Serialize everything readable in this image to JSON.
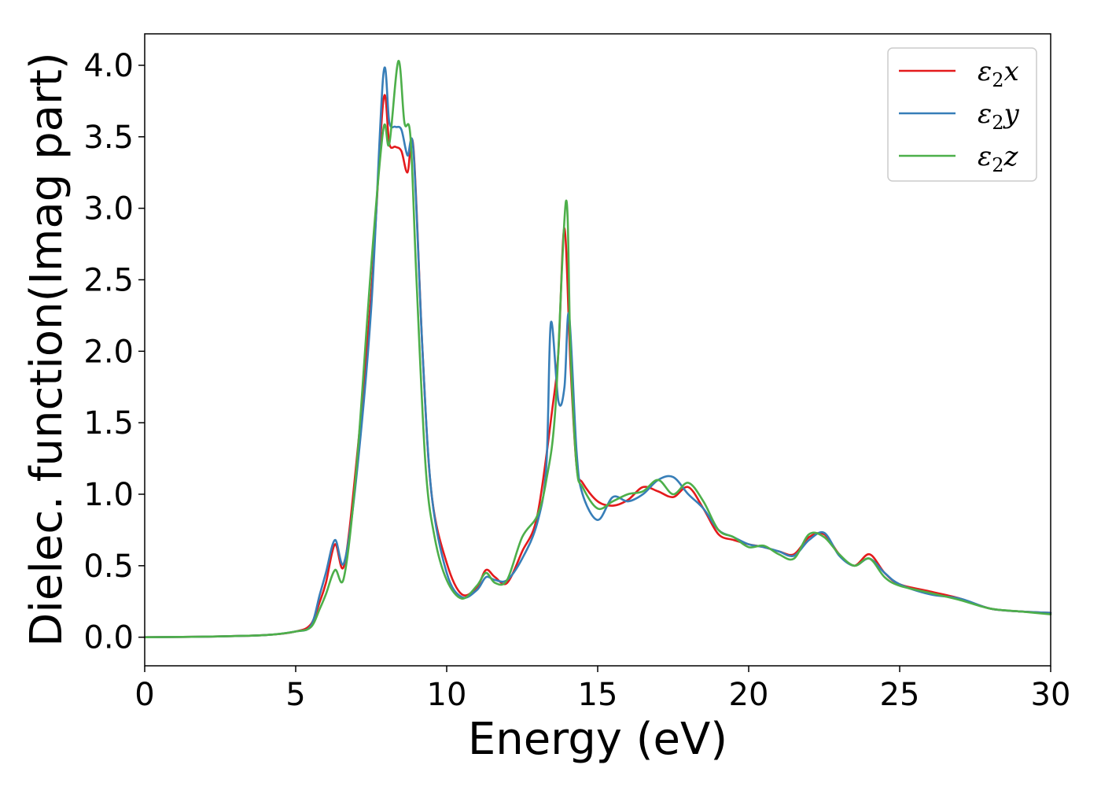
{
  "chart_data": {
    "type": "line",
    "title": "",
    "xlabel": "Energy (eV)",
    "ylabel": "Dielec. function(Imag part)",
    "xlim": [
      0,
      30
    ],
    "ylim": [
      -0.2,
      4.22
    ],
    "xticks": [
      0,
      5,
      10,
      15,
      20,
      25,
      30
    ],
    "xtick_labels": [
      "0",
      "5",
      "10",
      "15",
      "20",
      "25",
      "30"
    ],
    "yticks": [
      0.0,
      0.5,
      1.0,
      1.5,
      2.0,
      2.5,
      3.0,
      3.5,
      4.0
    ],
    "ytick_labels": [
      "0.0",
      "0.5",
      "1.0",
      "1.5",
      "2.0",
      "2.5",
      "3.0",
      "3.5",
      "4.0"
    ],
    "grid": false,
    "legend_position": "top-right",
    "series": [
      {
        "name": "ε2x",
        "legend_base": "ε",
        "legend_sub": "2",
        "legend_var": "x",
        "color": "#e41a1c",
        "x": [
          0,
          2,
          4,
          5,
          5.5,
          5.8,
          6.0,
          6.3,
          6.6,
          7.0,
          7.5,
          7.9,
          8.1,
          8.3,
          8.5,
          8.7,
          8.9,
          9.2,
          9.5,
          10.0,
          10.5,
          11.0,
          11.3,
          11.6,
          12.0,
          12.5,
          13.0,
          13.5,
          13.7,
          13.9,
          14.1,
          14.3,
          14.5,
          15.0,
          15.5,
          16.0,
          16.5,
          17.0,
          17.5,
          18.0,
          18.5,
          19.0,
          19.5,
          20.0,
          20.5,
          21.0,
          21.5,
          22.0,
          22.5,
          23.0,
          23.5,
          24.0,
          24.5,
          25.0,
          26.0,
          27.0,
          28.0,
          29.0,
          30.0
        ],
        "y": [
          0.0,
          0.004,
          0.015,
          0.04,
          0.09,
          0.25,
          0.38,
          0.65,
          0.5,
          1.2,
          2.4,
          3.75,
          3.45,
          3.43,
          3.4,
          3.25,
          3.42,
          2.0,
          1.0,
          0.52,
          0.3,
          0.35,
          0.47,
          0.42,
          0.38,
          0.6,
          0.85,
          1.6,
          2.0,
          2.86,
          1.9,
          1.2,
          1.08,
          0.95,
          0.92,
          0.96,
          1.05,
          1.02,
          0.98,
          1.05,
          0.9,
          0.72,
          0.68,
          0.65,
          0.63,
          0.6,
          0.58,
          0.7,
          0.72,
          0.58,
          0.5,
          0.58,
          0.45,
          0.37,
          0.32,
          0.27,
          0.2,
          0.18,
          0.17
        ]
      },
      {
        "name": "ε2y",
        "legend_base": "ε",
        "legend_sub": "2",
        "legend_var": "y",
        "color": "#377eb8",
        "x": [
          0,
          2,
          4,
          5,
          5.5,
          5.8,
          6.0,
          6.3,
          6.6,
          7.0,
          7.5,
          7.9,
          8.1,
          8.3,
          8.5,
          8.7,
          8.9,
          9.2,
          9.5,
          10.0,
          10.5,
          11.0,
          11.3,
          11.6,
          12.0,
          12.5,
          13.0,
          13.3,
          13.45,
          13.7,
          13.9,
          14.05,
          14.3,
          14.5,
          15.0,
          15.5,
          16.0,
          16.5,
          17.0,
          17.5,
          18.0,
          18.5,
          19.0,
          19.5,
          20.0,
          20.5,
          21.0,
          21.5,
          22.0,
          22.5,
          23.0,
          23.5,
          24.0,
          24.5,
          25.0,
          26.0,
          27.0,
          28.0,
          29.0,
          30.0
        ],
        "y": [
          0.0,
          0.004,
          0.015,
          0.04,
          0.08,
          0.3,
          0.45,
          0.68,
          0.52,
          1.1,
          2.3,
          3.93,
          3.6,
          3.57,
          3.55,
          3.37,
          3.4,
          2.0,
          1.0,
          0.45,
          0.28,
          0.33,
          0.42,
          0.4,
          0.4,
          0.55,
          0.8,
          1.2,
          2.2,
          1.65,
          1.75,
          2.26,
          1.3,
          1.0,
          0.82,
          0.98,
          0.95,
          1.0,
          1.1,
          1.12,
          1.0,
          0.9,
          0.75,
          0.7,
          0.65,
          0.63,
          0.6,
          0.57,
          0.68,
          0.73,
          0.57,
          0.5,
          0.55,
          0.45,
          0.37,
          0.3,
          0.27,
          0.2,
          0.18,
          0.17
        ]
      },
      {
        "name": "ε2z",
        "legend_base": "ε",
        "legend_sub": "2",
        "legend_var": "z",
        "color": "#4daf4a",
        "x": [
          0,
          2,
          4,
          5,
          5.5,
          5.8,
          6.0,
          6.3,
          6.6,
          7.0,
          7.5,
          7.9,
          8.1,
          8.4,
          8.6,
          8.8,
          9.0,
          9.3,
          9.6,
          10.0,
          10.5,
          11.0,
          11.3,
          11.6,
          12.0,
          12.5,
          13.0,
          13.3,
          13.6,
          13.95,
          14.1,
          14.3,
          14.5,
          15.0,
          15.5,
          16.0,
          16.5,
          17.0,
          17.5,
          18.0,
          18.5,
          19.0,
          19.5,
          20.0,
          20.5,
          21.0,
          21.5,
          22.0,
          22.5,
          23.0,
          23.5,
          24.0,
          24.5,
          25.0,
          26.0,
          27.0,
          28.0,
          29.0,
          30.0
        ],
        "y": [
          0.0,
          0.004,
          0.015,
          0.04,
          0.07,
          0.2,
          0.3,
          0.47,
          0.42,
          1.15,
          2.6,
          3.55,
          3.45,
          4.03,
          3.6,
          3.5,
          2.5,
          1.2,
          0.7,
          0.4,
          0.27,
          0.36,
          0.45,
          0.38,
          0.4,
          0.7,
          0.85,
          1.1,
          1.6,
          3.05,
          2.0,
          1.2,
          1.05,
          0.9,
          0.95,
          1.0,
          1.02,
          1.1,
          1.0,
          1.08,
          0.95,
          0.75,
          0.7,
          0.63,
          0.64,
          0.58,
          0.55,
          0.72,
          0.7,
          0.58,
          0.5,
          0.55,
          0.42,
          0.36,
          0.31,
          0.26,
          0.2,
          0.18,
          0.16
        ]
      }
    ]
  }
}
